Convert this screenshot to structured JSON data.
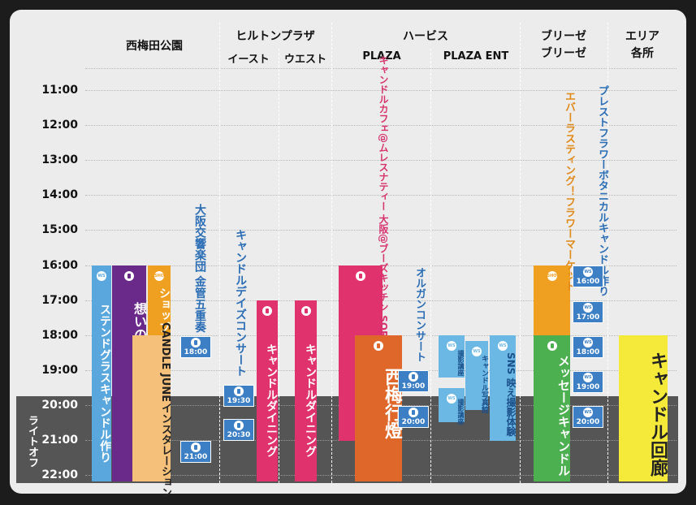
{
  "venues": [
    {
      "name_lines": [
        "西梅田公園"
      ]
    },
    {
      "name_lines": [
        "ヒルトンプラザ"
      ],
      "subs": [
        "イースト",
        "ウエスト"
      ]
    },
    {
      "name_lines": [
        "ハービス"
      ],
      "subs": [
        "PLAZA",
        "PLAZA ENT"
      ]
    },
    {
      "name_lines": [
        "ブリーゼ",
        "ブリーゼ"
      ]
    },
    {
      "name_lines": [
        "エリア",
        "各所"
      ]
    }
  ],
  "times": [
    "11:00",
    "12:00",
    "13:00",
    "14:00",
    "15:00",
    "16:00",
    "17:00",
    "18:00",
    "19:00",
    "20:00",
    "21:00",
    "22:00"
  ],
  "light_off": "ライトオフ",
  "icons": {
    "ws": "WS",
    "shop": "SHOP"
  },
  "events": [
    {
      "lines": [
        "ステンドグラスキャンドル作り"
      ]
    },
    {
      "lines": [
        "想いの灯"
      ]
    },
    {
      "lines": [
        "ショップ"
      ]
    },
    {
      "lines": [
        "CANDLE JUNE",
        "インスタレーション"
      ]
    },
    {
      "lines": [
        "大阪交響楽団 金管五重奏"
      ]
    },
    {
      "lines": [
        "キャンドルデイズコンサート"
      ]
    },
    {
      "lines": [
        "キャンドルダイニング"
      ]
    },
    {
      "lines": [
        "キャンドルダイニング"
      ]
    },
    {
      "lines": [
        "キャンドルカフェ",
        "@ムレスナティー 大阪",
        "@ブーズキッチン SORA"
      ]
    },
    {
      "lines": [
        "西梅行燈"
      ]
    },
    {
      "lines": [
        "オルガンコンサート"
      ]
    },
    {
      "lines": [
        "撮影",
        "講座"
      ]
    },
    {
      "lines": [
        "撮影",
        "講座"
      ]
    },
    {
      "lines": [
        "キャンドル",
        "写真館"
      ]
    },
    {
      "lines": [
        "SNS 映え撮影体験"
      ]
    },
    {
      "lines": [
        "エバーラスティング！",
        "フラワーマーケット"
      ]
    },
    {
      "lines": [
        "メッセージキャンドル"
      ]
    },
    {
      "lines": [
        "プレストフラワー",
        "ボタニカルキャンドル作り"
      ]
    },
    {
      "lines": [
        "キャンドル回廊"
      ]
    }
  ],
  "badges": [
    "18:00",
    "21:00",
    "19:30",
    "20:30",
    "19:00",
    "20:00",
    "16:00",
    "17:00",
    "18:00",
    "19:00",
    "20:00"
  ]
}
